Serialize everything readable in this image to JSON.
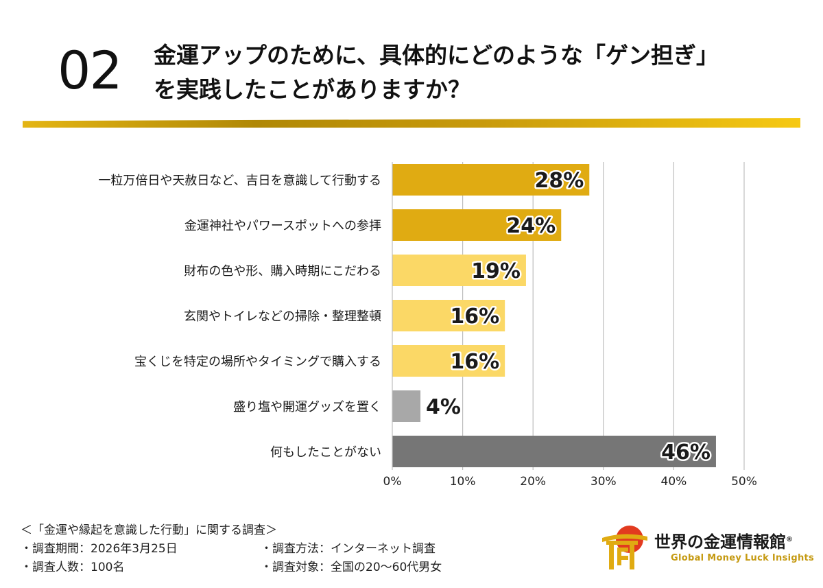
{
  "question": {
    "number": "02",
    "title_line1": "金運アップのために、具体的にどのような「ゲン担ぎ」",
    "title_line2": "を実践したことがありますか？"
  },
  "chart_data": {
    "type": "bar",
    "orientation": "horizontal",
    "categories": [
      "一粒万倍日や天赦日など、吉日を意識して行動する",
      "金運神社やパワースポットへの参拝",
      "財布の色や形、購入時期にこだわる",
      "玄関やトイレなどの掃除・整理整頓",
      "宝くじを特定の場所やタイミングで購入する",
      "盛り塩や開運グッズを置く",
      "何もしたことがない"
    ],
    "values": [
      28,
      24,
      19,
      16,
      16,
      4,
      46
    ],
    "value_labels": [
      "28%",
      "24%",
      "19%",
      "16%",
      "16%",
      "4%",
      "46%"
    ],
    "bar_colors": [
      "#e0ab12",
      "#e0ab12",
      "#fbd866",
      "#fbd866",
      "#fbd866",
      "#a8a8a8",
      "#767676"
    ],
    "xlim": [
      0,
      50
    ],
    "xticks": [
      "0%",
      "10%",
      "20%",
      "30%",
      "40%",
      "50%"
    ],
    "xtick_values": [
      0,
      10,
      20,
      30,
      40,
      50
    ],
    "grid": true,
    "unit": "%"
  },
  "footer": {
    "survey_title": "＜「金運や縁起を意識した行動」に関する調査＞",
    "period": "・調査期間：2026年3月25日",
    "method": "・調査方法：インターネット調査",
    "count": "・調査人数：100名",
    "target": "・調査対象：全国の20〜60代男女"
  },
  "logo": {
    "name": "世界の金運情報館",
    "registered": "®",
    "tagline": "Global Money Luck Insights"
  },
  "colors": {
    "accent_gold": "#e0ab12",
    "light_gold": "#fbd866",
    "gray": "#a8a8a8",
    "dark_gray": "#767676"
  }
}
